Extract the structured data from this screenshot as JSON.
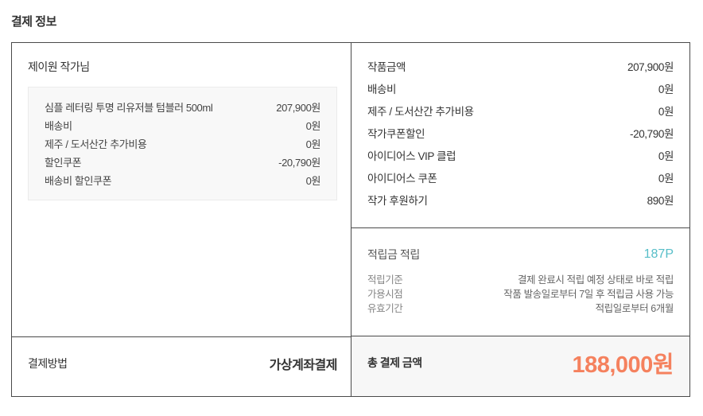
{
  "page": {
    "title": "결제 정보"
  },
  "colors": {
    "accent_orange": "#f5815e",
    "accent_teal": "#57bec8",
    "border_dark": "#4a4a4a",
    "item_box_bg": "#f8f8f8",
    "total_section_bg": "#f7f7f7"
  },
  "seller_section": {
    "seller_name": "제이원 작가님",
    "items": [
      {
        "label": "심플 레터링 투명 리유저블 텀블러 500ml",
        "value": "207,900원"
      },
      {
        "label": "배송비",
        "value": "0원"
      },
      {
        "label": "제주 / 도서산간 추가비용",
        "value": "0원"
      },
      {
        "label": "할인쿠폰",
        "value": "-20,790원"
      },
      {
        "label": "배송비 할인쿠폰",
        "value": "0원"
      }
    ]
  },
  "payment_method": {
    "label": "결제방법",
    "value": "가상계좌결제"
  },
  "summary": {
    "rows": [
      {
        "label": "작품금액",
        "value": "207,900원"
      },
      {
        "label": "배송비",
        "value": "0원"
      },
      {
        "label": "제주 / 도서산간 추가비용",
        "value": "0원"
      },
      {
        "label": "작가쿠폰할인",
        "value": "-20,790원"
      },
      {
        "label": "아이디어스 VIP 클럽",
        "value": "0원"
      },
      {
        "label": "아이디어스 쿠폰",
        "value": "0원"
      },
      {
        "label": "작가 후원하기",
        "value": "890원"
      }
    ]
  },
  "points": {
    "label": "적립금 적립",
    "value": "187P",
    "details": [
      {
        "label": "적립기준",
        "value": "결제 완료시 적립 예정 상태로 바로 적립"
      },
      {
        "label": "가용시점",
        "value": "작품 발송일로부터 7일 후 적립금 사용 가능"
      },
      {
        "label": "유효기간",
        "value": "적립일로부터 6개월"
      }
    ]
  },
  "total": {
    "label": "총 결제 금액",
    "value": "188,000원"
  }
}
